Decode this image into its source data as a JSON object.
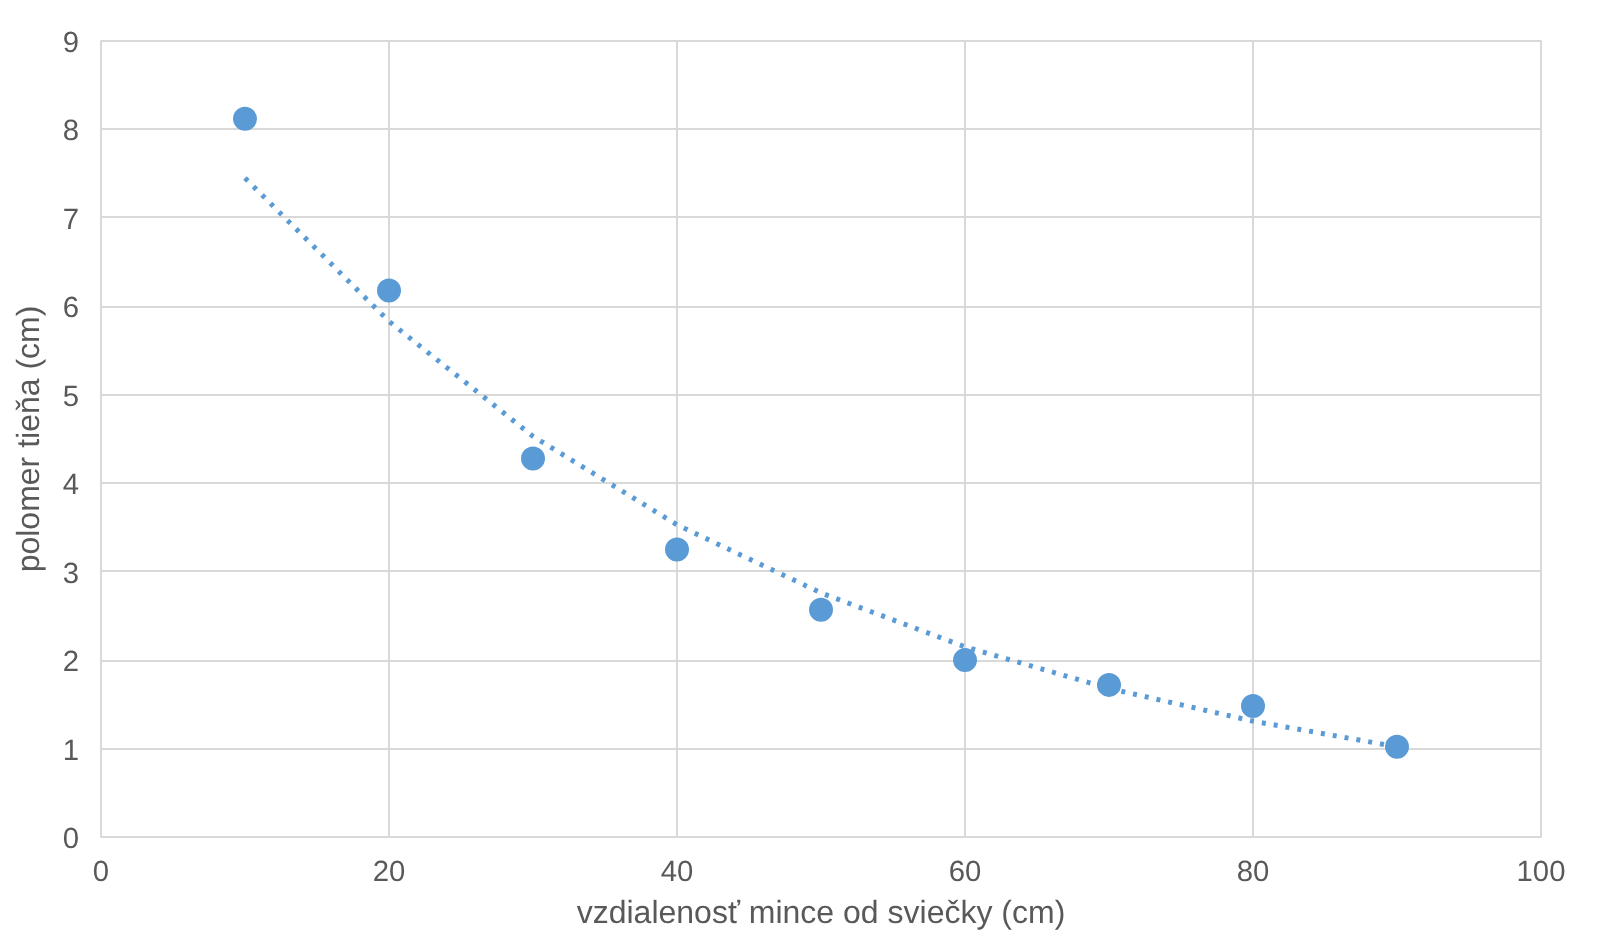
{
  "chart_data": {
    "type": "scatter",
    "xlabel": "vzdialenosť mince od sviečky (cm)",
    "ylabel": "polomer tieňa (cm)",
    "xlim": [
      0,
      100
    ],
    "xticks": [
      0,
      20,
      40,
      60,
      80,
      100
    ],
    "ylim": [
      0,
      9
    ],
    "yticks": [
      0,
      1,
      2,
      3,
      4,
      5,
      6,
      7,
      8,
      9
    ],
    "grid": true,
    "series": [
      {
        "color": "#5b9bd5",
        "marker": "circle",
        "x": [
          10,
          20,
          30,
          40,
          50,
          60,
          70,
          80,
          90
        ],
        "values": [
          8.12,
          6.18,
          4.28,
          3.25,
          2.57,
          2.0,
          1.72,
          1.48,
          1.02
        ]
      },
      {
        "type": "line",
        "color": "#5b9bd5",
        "marker": "none",
        "line_style": "dotted",
        "x": [
          10,
          20,
          30,
          40,
          50,
          60,
          70,
          80,
          90
        ],
        "values": [
          7.45,
          5.83,
          4.53,
          3.53,
          2.76,
          2.15,
          1.68,
          1.31,
          1.02
        ]
      }
    ]
  }
}
